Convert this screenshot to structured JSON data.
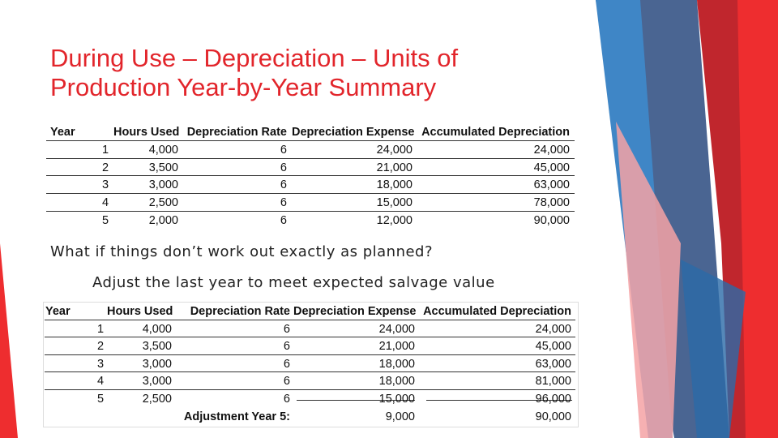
{
  "title": "During Use – Depreciation – Units of Production Year-by-Year Summary",
  "table1": {
    "header": [
      "Year",
      "Hours Used",
      "Depreciation Rate",
      "Depreciation Expense",
      "Accumulated Depreciation"
    ],
    "rows": [
      [
        "1",
        "4,000",
        "6",
        "24,000",
        "24,000"
      ],
      [
        "2",
        "3,500",
        "6",
        "21,000",
        "45,000"
      ],
      [
        "3",
        "3,000",
        "6",
        "18,000",
        "63,000"
      ],
      [
        "4",
        "2,500",
        "6",
        "15,000",
        "78,000"
      ],
      [
        "5",
        "2,000",
        "6",
        "12,000",
        "90,000"
      ]
    ]
  },
  "question": "What if things don’t work out exactly as planned?",
  "note": "Adjust the last year to meet expected salvage value",
  "table2": {
    "header": [
      "Year",
      "Hours Used",
      "Depreciation Rate",
      "Depreciation Expense",
      "Accumulated Depreciation"
    ],
    "rows": [
      [
        "1",
        "4,000",
        "6",
        "24,000",
        "24,000"
      ],
      [
        "2",
        "3,500",
        "6",
        "21,000",
        "45,000"
      ],
      [
        "3",
        "3,000",
        "6",
        "18,000",
        "63,000"
      ],
      [
        "4",
        "3,000",
        "6",
        "18,000",
        "81,000"
      ],
      [
        "5",
        "2,500",
        "6",
        "15,000",
        "96,000"
      ]
    ],
    "adjustment": [
      "Adjustment Year 5:",
      "9,000",
      "90,000"
    ]
  }
}
